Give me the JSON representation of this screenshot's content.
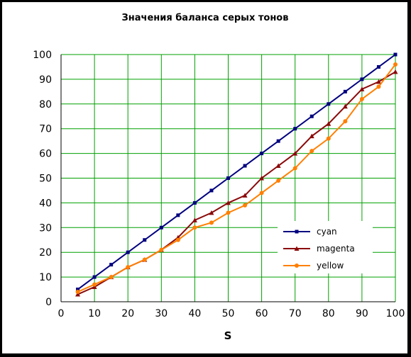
{
  "chart_data": {
    "type": "line",
    "title": "Значения баланса серых тонов",
    "xlabel": "S",
    "ylabel": "",
    "xlim": [
      0,
      100
    ],
    "ylim": [
      0,
      100
    ],
    "xticks": [
      0,
      10,
      20,
      30,
      40,
      50,
      60,
      70,
      80,
      90,
      100
    ],
    "yticks": [
      0,
      10,
      20,
      30,
      40,
      50,
      60,
      70,
      80,
      90,
      100
    ],
    "grid": true,
    "legend_position": "right",
    "series": [
      {
        "name": "cyan",
        "color": "#00007f",
        "marker": "square",
        "points": [
          [
            5,
            5
          ],
          [
            10,
            10
          ],
          [
            15,
            15
          ],
          [
            20,
            20
          ],
          [
            25,
            25
          ],
          [
            30,
            30
          ],
          [
            35,
            35
          ],
          [
            40,
            40
          ],
          [
            45,
            45
          ],
          [
            50,
            50
          ],
          [
            55,
            55
          ],
          [
            60,
            60
          ],
          [
            65,
            65
          ],
          [
            70,
            70
          ],
          [
            75,
            75
          ],
          [
            80,
            80
          ],
          [
            85,
            85
          ],
          [
            90,
            90
          ],
          [
            95,
            95
          ],
          [
            100,
            100
          ]
        ]
      },
      {
        "name": "magenta",
        "color": "#8b0a0a",
        "marker": "triangle",
        "points": [
          [
            5,
            3
          ],
          [
            10,
            6
          ],
          [
            15,
            10
          ],
          [
            20,
            14
          ],
          [
            25,
            17
          ],
          [
            30,
            21
          ],
          [
            35,
            26
          ],
          [
            40,
            33
          ],
          [
            45,
            36
          ],
          [
            50,
            40
          ],
          [
            55,
            43
          ],
          [
            60,
            50
          ],
          [
            65,
            55
          ],
          [
            70,
            60
          ],
          [
            75,
            67
          ],
          [
            80,
            72
          ],
          [
            85,
            79
          ],
          [
            90,
            86
          ],
          [
            95,
            89
          ],
          [
            100,
            93
          ]
        ]
      },
      {
        "name": "yellow",
        "color": "#ff7f00",
        "marker": "circle",
        "points": [
          [
            5,
            4
          ],
          [
            10,
            7
          ],
          [
            15,
            10
          ],
          [
            20,
            14
          ],
          [
            25,
            17
          ],
          [
            30,
            21
          ],
          [
            35,
            25
          ],
          [
            40,
            30
          ],
          [
            45,
            32
          ],
          [
            50,
            36
          ],
          [
            55,
            39
          ],
          [
            60,
            44
          ],
          [
            65,
            49
          ],
          [
            70,
            54
          ],
          [
            75,
            61
          ],
          [
            80,
            66
          ],
          [
            85,
            73
          ],
          [
            90,
            82
          ],
          [
            95,
            87
          ],
          [
            100,
            96
          ]
        ]
      }
    ]
  },
  "colors": {
    "grid": "#00a000",
    "background": "#ffffff",
    "frame": "#000000"
  }
}
